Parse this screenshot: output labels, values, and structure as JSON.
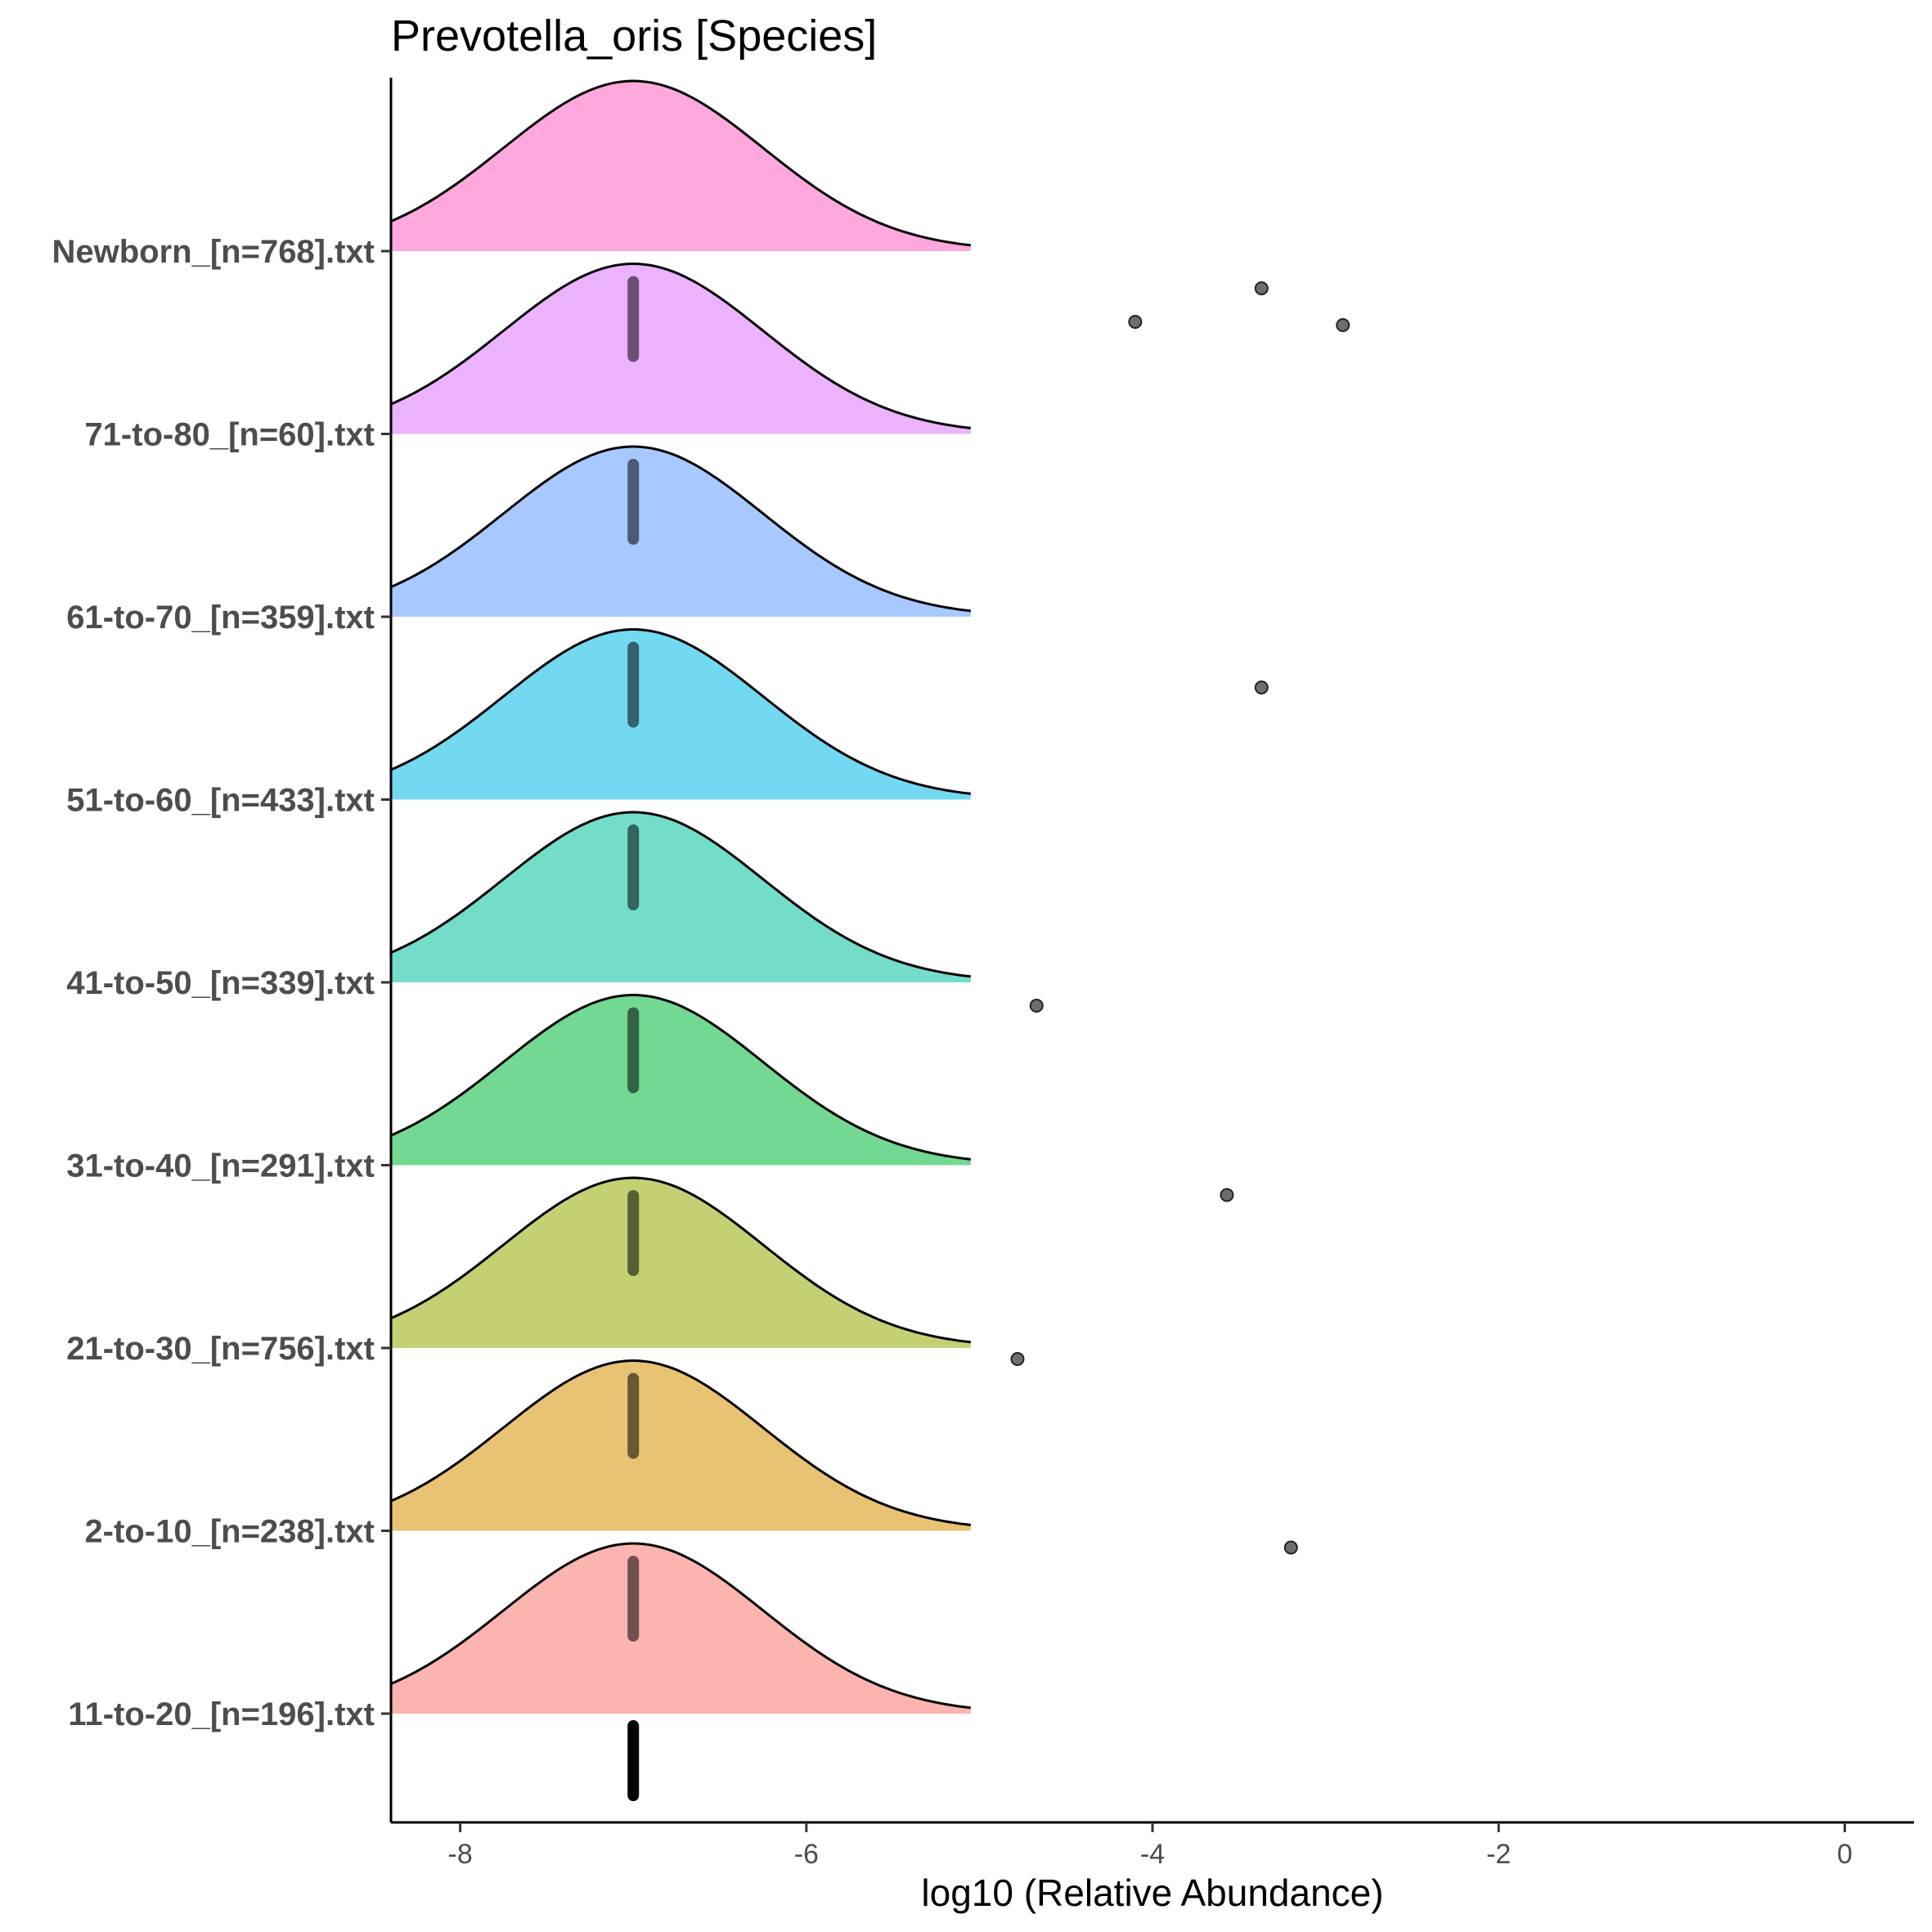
{
  "chart_data": {
    "type": "ridgeline",
    "title": "Prevotella_oris [Species]",
    "xlabel": "log10 (Relative Abundance)",
    "ylabel": "",
    "xlim": [
      -8.4,
      0.4
    ],
    "xticks": [
      -8,
      -6,
      -4,
      -2,
      0
    ],
    "xtick_labels": [
      "-8",
      "-6",
      "-4",
      "-2",
      "0"
    ],
    "grid": false,
    "legend": "none",
    "density": {
      "mode": -7.0,
      "sd": 0.75,
      "x_end": -5.05
    },
    "categories": [
      "11-to-20_[n=196].txt",
      "2-to-10_[n=238].txt",
      "21-to-30_[n=756].txt",
      "31-to-40_[n=291].txt",
      "41-to-50_[n=339].txt",
      "51-to-60_[n=433].txt",
      "61-to-70_[n=359].txt",
      "71-to-80_[n=60].txt",
      "Newborn_[n=768].txt"
    ],
    "series": [
      {
        "category": "11-to-20_[n=196].txt",
        "fill": "#F8766D",
        "median": -7.0,
        "outliers": [
          -3.2
        ]
      },
      {
        "category": "2-to-10_[n=238].txt",
        "fill": "#D39200",
        "median": -7.0,
        "outliers": [
          -4.78
        ]
      },
      {
        "category": "21-to-30_[n=756].txt",
        "fill": "#93AA00",
        "median": -7.0,
        "outliers": [
          -3.57
        ]
      },
      {
        "category": "31-to-40_[n=291].txt",
        "fill": "#00BA38",
        "median": -7.0,
        "outliers": [
          -4.67
        ]
      },
      {
        "category": "41-to-50_[n=339].txt",
        "fill": "#00C19F",
        "median": -7.0,
        "outliers": []
      },
      {
        "category": "51-to-60_[n=433].txt",
        "fill": "#00B9E3",
        "median": -7.0,
        "outliers": [
          -3.37
        ]
      },
      {
        "category": "61-to-70_[n=359].txt",
        "fill": "#619CFF",
        "median": -7.0,
        "outliers": []
      },
      {
        "category": "71-to-80_[n=60].txt",
        "fill": "#DB72FB",
        "median": -7.0,
        "outliers": [
          -4.1,
          -3.37,
          -2.9
        ]
      },
      {
        "category": "Newborn_[n=768].txt",
        "fill": "#FF61C3",
        "median": null,
        "outliers": []
      }
    ],
    "baseline_marker": {
      "median": -7.0
    }
  }
}
